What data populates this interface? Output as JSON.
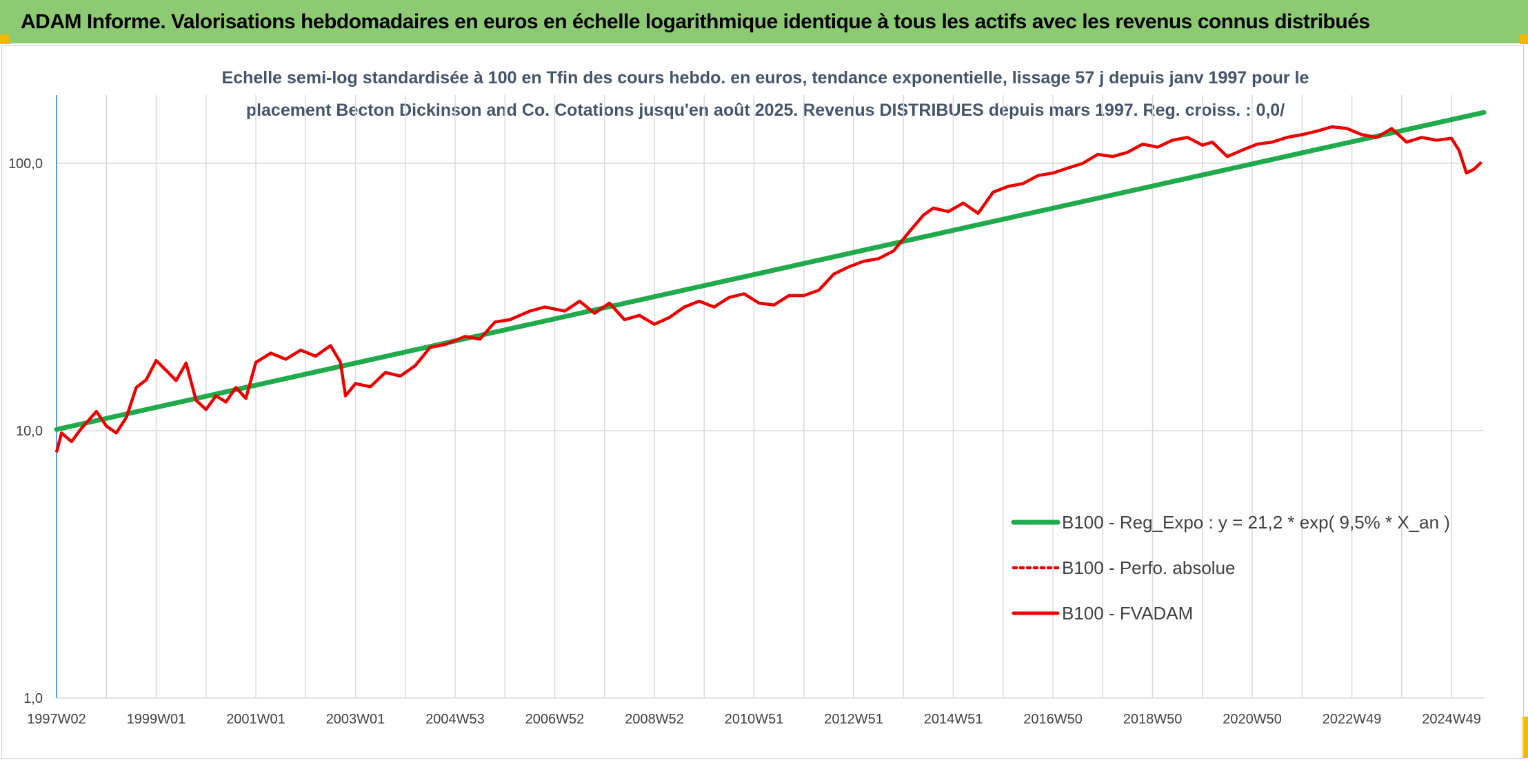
{
  "header": {
    "title": "ADAM Informe. Valorisations hebdomadaires en euros en échelle logarithmique identique à tous les actifs avec les revenus connus distribués"
  },
  "colors": {
    "header_bg": "#8ccb74",
    "corner": "#f5b800",
    "trend": "#1faa4b",
    "fvadam": "#ee0000",
    "grid": "#d9d9d9",
    "axis": "#5b9bd5"
  },
  "chart_data": {
    "type": "line",
    "title": "Echelle semi-log standardisée à 100 en Tfin des cours hebdo. en euros, tendance exponentielle, lissage 57 j depuis janv 1997 pour le placement Becton Dickinson and Co. Cotations jusqu'en août 2025. Revenus DISTRIBUES depuis mars 1997. Reg. croiss. : 0,0/",
    "title_lines": [
      "Echelle semi-log standardisée à 100 en Tfin des cours hebdo. en euros, tendance exponentielle, lissage 57 j depuis janv 1997 pour le",
      "placement Becton Dickinson and Co. Cotations jusqu'en août 2025. Revenus DISTRIBUES depuis mars 1997. Reg. croiss. : 0,0/"
    ],
    "y_scale": "log",
    "ylim": [
      1,
      180
    ],
    "y_ticks": [
      1,
      10,
      100
    ],
    "y_tick_labels": [
      "1,0",
      "10,0",
      "100,0"
    ],
    "x_range": [
      1997.0,
      2025.65
    ],
    "x_tick_labels": [
      "1997W02",
      "1999W01",
      "2001W01",
      "2003W01",
      "2004W53",
      "2006W52",
      "2008W52",
      "2010W51",
      "2012W51",
      "2014W51",
      "2016W50",
      "2018W50",
      "2020W50",
      "2022W49",
      "2024W49"
    ],
    "x_tick_years": [
      1997.0,
      1999.0,
      2001.0,
      2003.0,
      2005.0,
      2007.0,
      2009.0,
      2011.0,
      2013.0,
      2015.0,
      2017.0,
      2019.0,
      2021.0,
      2023.0,
      2025.0
    ],
    "grid": "vertical lines every year, horizontal lines at 1, 10 and 100",
    "legend_placement": "bottom-right",
    "series": [
      {
        "name": "B100 - Reg_Expo : y = 21,2 * exp( 9,5% *  X_an )",
        "style": "solid-green",
        "x": [
          1997.0,
          2025.65
        ],
        "y": [
          10.1,
          155
        ]
      },
      {
        "name": "B100 - Perfo. absolue",
        "style": "dotted-red",
        "x": [],
        "y": []
      },
      {
        "name": "B100 - FVADAM",
        "style": "solid-red",
        "x": [
          1997.0,
          1997.1,
          1997.3,
          1997.5,
          1997.8,
          1998.0,
          1998.2,
          1998.4,
          1998.6,
          1998.8,
          1999.0,
          1999.2,
          1999.4,
          1999.6,
          1999.8,
          2000.0,
          2000.2,
          2000.4,
          2000.6,
          2000.8,
          2001.0,
          2001.3,
          2001.6,
          2001.9,
          2002.2,
          2002.5,
          2002.7,
          2002.8,
          2003.0,
          2003.3,
          2003.6,
          2003.9,
          2004.2,
          2004.5,
          2004.8,
          2005.2,
          2005.5,
          2005.8,
          2006.1,
          2006.5,
          2006.8,
          2007.2,
          2007.5,
          2007.8,
          2008.1,
          2008.4,
          2008.7,
          2009.0,
          2009.3,
          2009.6,
          2009.9,
          2010.2,
          2010.5,
          2010.8,
          2011.1,
          2011.4,
          2011.7,
          2012.0,
          2012.3,
          2012.6,
          2012.9,
          2013.2,
          2013.5,
          2013.8,
          2014.1,
          2014.4,
          2014.6,
          2014.9,
          2015.2,
          2015.5,
          2015.8,
          2016.1,
          2016.4,
          2016.7,
          2017.0,
          2017.3,
          2017.6,
          2017.9,
          2018.2,
          2018.5,
          2018.8,
          2019.1,
          2019.4,
          2019.7,
          2020.0,
          2020.2,
          2020.5,
          2020.8,
          2021.1,
          2021.4,
          2021.7,
          2022.0,
          2022.3,
          2022.6,
          2022.9,
          2023.2,
          2023.5,
          2023.8,
          2024.1,
          2024.4,
          2024.7,
          2025.0,
          2025.15,
          2025.3,
          2025.45,
          2025.6
        ],
        "y": [
          8.3,
          9.8,
          9.1,
          10.2,
          11.8,
          10.4,
          9.8,
          11.2,
          14.5,
          15.5,
          18.3,
          16.8,
          15.4,
          17.9,
          13.0,
          12.0,
          13.5,
          12.8,
          14.5,
          13.2,
          18.0,
          19.5,
          18.5,
          20.0,
          19.0,
          20.8,
          18.0,
          13.5,
          15.0,
          14.6,
          16.5,
          16.0,
          17.5,
          20.5,
          21.0,
          22.5,
          22.0,
          25.5,
          26.0,
          28.0,
          29.0,
          28.0,
          30.5,
          27.5,
          30.0,
          26.0,
          27.0,
          25.0,
          26.5,
          29.0,
          30.5,
          29.0,
          31.5,
          32.5,
          30.0,
          29.5,
          32.0,
          32.0,
          33.5,
          38.5,
          41.0,
          43.0,
          44.0,
          47.0,
          55.0,
          64.0,
          68.0,
          66.0,
          71.0,
          65.0,
          78.0,
          82.0,
          84.0,
          90.0,
          92.0,
          96.0,
          100.0,
          108.0,
          106.0,
          110.0,
          118.0,
          115.0,
          122.0,
          125.0,
          117.0,
          120.0,
          106.0,
          112.0,
          118.0,
          120.0,
          125.0,
          128.0,
          132.0,
          137.0,
          135.0,
          128.0,
          125.0,
          135.0,
          120.0,
          125.0,
          122.0,
          124.0,
          112.0,
          92.0,
          95.0,
          101.0
        ]
      }
    ]
  }
}
